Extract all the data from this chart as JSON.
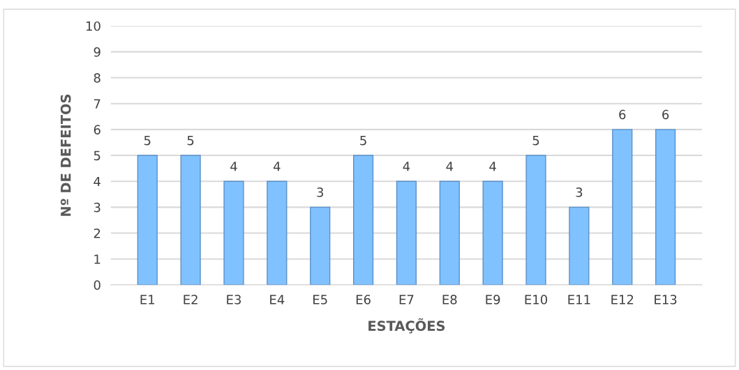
{
  "chart_data": {
    "type": "bar",
    "xlabel": "ESTAÇÕES",
    "ylabel": "Nº DE DEFEITOS",
    "categories": [
      "E1",
      "E2",
      "E3",
      "E4",
      "E5",
      "E6",
      "E7",
      "E8",
      "E9",
      "E10",
      "E11",
      "E12",
      "E13"
    ],
    "values": [
      5,
      5,
      4,
      4,
      3,
      5,
      4,
      4,
      4,
      5,
      3,
      6,
      6
    ],
    "color": "#80c1ff",
    "ylim": [
      0,
      10
    ],
    "yticks": [
      0,
      1,
      2,
      3,
      4,
      5,
      6,
      7,
      8,
      9,
      10
    ],
    "grid": "y",
    "data_labels": true
  }
}
